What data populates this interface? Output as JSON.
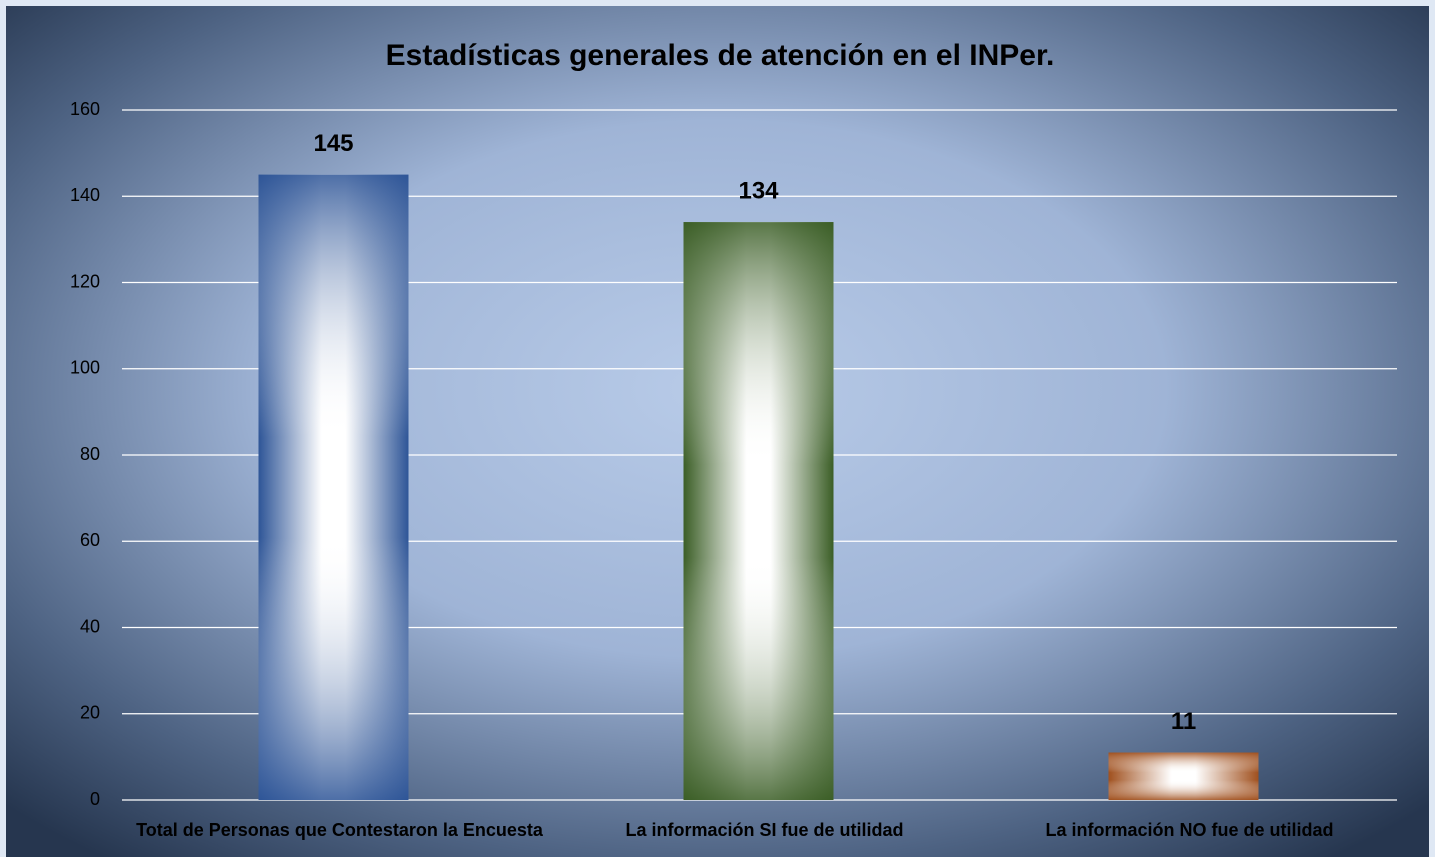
{
  "chart_data": {
    "type": "bar",
    "title": "Estadísticas generales de atención en el INPer.",
    "categories": [
      "Total de Personas que Contestaron la Encuesta",
      "La información SI fue de utilidad",
      "La información NO fue de utilidad"
    ],
    "values": [
      145,
      134,
      11
    ],
    "colors": [
      "#2e5597",
      "#3b5e26",
      "#a0501e"
    ],
    "ylim": [
      0,
      160
    ],
    "yticks": [
      0,
      20,
      40,
      60,
      80,
      100,
      120,
      140,
      160
    ],
    "grid": true
  }
}
